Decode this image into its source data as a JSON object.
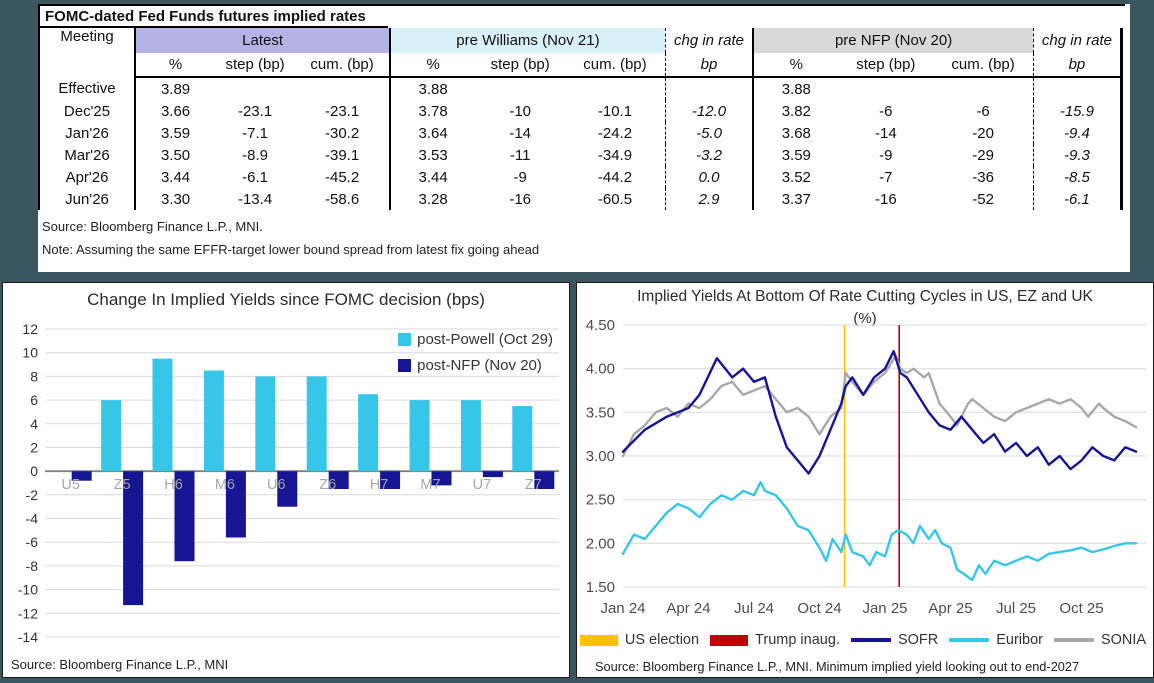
{
  "colors": {
    "background": "#3c5660",
    "header_latest": "#b5b3e6",
    "header_williams": "#d9f0f8",
    "header_nfp": "#d9d9d9",
    "gridline": "#d9d9d9",
    "zero_axis": "#808080"
  },
  "table": {
    "title": "FOMC-dated Fed Funds futures implied rates",
    "col_meeting": "Meeting",
    "groups": [
      {
        "label": "Latest",
        "cols": [
          "%",
          "step (bp)",
          "cum. (bp)"
        ]
      },
      {
        "label": "pre Williams (Nov 21)",
        "cols": [
          "%",
          "step (bp)",
          "cum. (bp)"
        ]
      },
      {
        "label": "chg in rate",
        "cols": [
          "bp"
        ]
      },
      {
        "label": "pre NFP (Nov 20)",
        "cols": [
          "%",
          "step (bp)",
          "cum. (bp)"
        ]
      },
      {
        "label": "chg in rate",
        "cols": [
          "bp"
        ]
      }
    ],
    "rows": [
      {
        "meeting": "Effective",
        "cells": [
          "3.89",
          "",
          "",
          "3.88",
          "",
          "",
          "",
          "3.88",
          "",
          "",
          ""
        ]
      },
      {
        "meeting": "Dec'25",
        "cells": [
          "3.66",
          "-23.1",
          "-23.1",
          "3.78",
          "-10",
          "-10.1",
          "-12.0",
          "3.82",
          "-6",
          "-6",
          "-15.9"
        ]
      },
      {
        "meeting": "Jan'26",
        "cells": [
          "3.59",
          "-7.1",
          "-30.2",
          "3.64",
          "-14",
          "-24.2",
          "-5.0",
          "3.68",
          "-14",
          "-20",
          "-9.4"
        ]
      },
      {
        "meeting": "Mar'26",
        "cells": [
          "3.50",
          "-8.9",
          "-39.1",
          "3.53",
          "-11",
          "-34.9",
          "-3.2",
          "3.59",
          "-9",
          "-29",
          "-9.3"
        ]
      },
      {
        "meeting": "Apr'26",
        "cells": [
          "3.44",
          "-6.1",
          "-45.2",
          "3.44",
          "-9",
          "-44.2",
          "0.0",
          "3.52",
          "-7",
          "-36",
          "-8.5"
        ]
      },
      {
        "meeting": "Jun'26",
        "cells": [
          "3.30",
          "-13.4",
          "-58.6",
          "3.28",
          "-16",
          "-60.5",
          "2.9",
          "3.37",
          "-16",
          "-52",
          "-6.1"
        ]
      }
    ],
    "source": "Source: Bloomberg Finance L.P., MNI.",
    "note": "Note: Assuming the same  EFFR-target lower bound spread from latest fix going ahead"
  },
  "chart_data": [
    {
      "type": "bar",
      "title": "Change In Implied Yields since FOMC decision (bps)",
      "categories": [
        "U5",
        "Z5",
        "H6",
        "M6",
        "U6",
        "Z6",
        "H7",
        "M7",
        "U7",
        "Z7"
      ],
      "series": [
        {
          "name": "post-Powell (Oct 29)",
          "color": "#38c6e8",
          "values": [
            0,
            6,
            9.5,
            8.5,
            8,
            8,
            6.5,
            6,
            6,
            5.5
          ]
        },
        {
          "name": "post-NFP (Nov 20)",
          "color": "#161694",
          "values": [
            -0.8,
            -11.3,
            -7.6,
            -5.6,
            -3.0,
            -1.5,
            -1.5,
            -1.2,
            -0.5,
            -1.5
          ]
        }
      ],
      "ylim": [
        -14,
        12
      ],
      "ytick_step": 2,
      "grid": true,
      "legend_position": "top-right",
      "source": "Source: Bloomberg Finance L.P., MNI"
    },
    {
      "type": "line",
      "title": "Implied Yields At Bottom Of Rate Cutting Cycles in US, EZ and UK",
      "subtitle": "(%)",
      "x_ticks": [
        "Jan 24",
        "Apr 24",
        "Jul 24",
        "Oct 24",
        "Jan 25",
        "Apr 25",
        "Jul 25",
        "Oct 25"
      ],
      "x_range_months": [
        0,
        24
      ],
      "ylim": [
        1.5,
        4.5
      ],
      "ytick_step": 0.5,
      "ytick_labels": [
        "1.50",
        "2.00",
        "2.50",
        "3.00",
        "3.50",
        "4.00",
        "4.50"
      ],
      "grid": true,
      "legend_position": "bottom",
      "vlines": [
        {
          "name": "US election",
          "color": "#ffc000",
          "x": 10.15
        },
        {
          "name": "Trump inaug.",
          "color": "#c00000",
          "x": 12.65
        }
      ],
      "series": [
        {
          "name": "SOFR",
          "color": "#161694",
          "x": [
            0,
            1,
            2,
            3,
            3.5,
            4.3,
            5,
            5.5,
            6,
            6.5,
            7,
            7.5,
            8.5,
            9,
            9.5,
            10,
            10.2,
            10.5,
            11,
            11.5,
            12,
            12.4,
            12.7,
            13,
            13.5,
            14,
            14.5,
            15,
            15.5,
            16,
            16.5,
            17,
            17.5,
            18,
            18.5,
            19,
            19.5,
            20,
            20.5,
            21,
            21.5,
            22,
            22.5,
            23,
            23.5
          ],
          "values": [
            3.05,
            3.3,
            3.45,
            3.55,
            3.7,
            4.12,
            3.9,
            4.0,
            3.85,
            3.9,
            3.45,
            3.1,
            2.8,
            3.0,
            3.3,
            3.6,
            3.8,
            3.9,
            3.7,
            3.9,
            4.0,
            4.2,
            3.95,
            3.9,
            3.7,
            3.5,
            3.35,
            3.3,
            3.45,
            3.3,
            3.15,
            3.25,
            3.05,
            3.15,
            3.0,
            3.1,
            2.9,
            3.0,
            2.85,
            2.95,
            3.1,
            3.0,
            2.95,
            3.1,
            3.05
          ]
        },
        {
          "name": "Euribor",
          "color": "#38c6e8",
          "x": [
            0,
            0.5,
            1,
            1.5,
            2,
            2.5,
            3,
            3.5,
            4,
            4.5,
            5,
            5.5,
            6,
            6.3,
            6.5,
            7,
            7.5,
            8,
            8.5,
            9,
            9.3,
            9.6,
            10,
            10.2,
            10.5,
            11,
            11.3,
            11.6,
            12,
            12.3,
            12.6,
            13,
            13.3,
            13.6,
            14,
            14.3,
            14.6,
            15,
            15.3,
            15.6,
            16,
            16.3,
            16.6,
            17,
            17.5,
            18,
            18.5,
            19,
            19.5,
            20,
            20.5,
            21,
            21.5,
            22,
            22.5,
            23,
            23.5
          ],
          "values": [
            1.88,
            2.1,
            2.05,
            2.2,
            2.35,
            2.45,
            2.4,
            2.3,
            2.45,
            2.55,
            2.5,
            2.6,
            2.55,
            2.7,
            2.6,
            2.55,
            2.4,
            2.2,
            2.15,
            1.95,
            1.8,
            2.05,
            1.9,
            2.1,
            1.9,
            1.85,
            1.75,
            1.9,
            1.85,
            2.1,
            2.15,
            2.1,
            2.0,
            2.2,
            2.05,
            2.15,
            2.0,
            1.95,
            1.7,
            1.65,
            1.58,
            1.75,
            1.65,
            1.8,
            1.75,
            1.8,
            1.85,
            1.8,
            1.88,
            1.9,
            1.92,
            1.95,
            1.9,
            1.93,
            1.97,
            2.0,
            2.0
          ]
        },
        {
          "name": "SONIA",
          "color": "#a8a8a8",
          "x": [
            0,
            0.5,
            1,
            1.5,
            2,
            2.5,
            3,
            3.5,
            4,
            4.5,
            5,
            5.5,
            6,
            6.5,
            7,
            7.5,
            8,
            8.5,
            9,
            9.5,
            10,
            10.2,
            10.5,
            11,
            11.5,
            12,
            12.5,
            12.7,
            13,
            13.3,
            13.8,
            14,
            14.5,
            15,
            15.3,
            15.8,
            16,
            16.5,
            17,
            17.5,
            18,
            18.5,
            19,
            19.5,
            20,
            20.5,
            21,
            21.3,
            21.8,
            22,
            22.5,
            23,
            23.5
          ],
          "values": [
            3.0,
            3.25,
            3.35,
            3.5,
            3.55,
            3.45,
            3.6,
            3.55,
            3.65,
            3.8,
            3.85,
            3.7,
            3.75,
            3.8,
            3.65,
            3.5,
            3.55,
            3.45,
            3.25,
            3.45,
            3.55,
            3.95,
            3.85,
            3.7,
            3.85,
            3.95,
            4.15,
            4.0,
            3.95,
            4.0,
            3.9,
            3.95,
            3.6,
            3.45,
            3.35,
            3.6,
            3.65,
            3.55,
            3.45,
            3.4,
            3.5,
            3.55,
            3.6,
            3.65,
            3.6,
            3.65,
            3.55,
            3.45,
            3.6,
            3.55,
            3.45,
            3.4,
            3.33
          ]
        }
      ],
      "source": "Source: Bloomberg Finance L.P., MNI. Minimum implied yield looking out to end-2027"
    }
  ]
}
